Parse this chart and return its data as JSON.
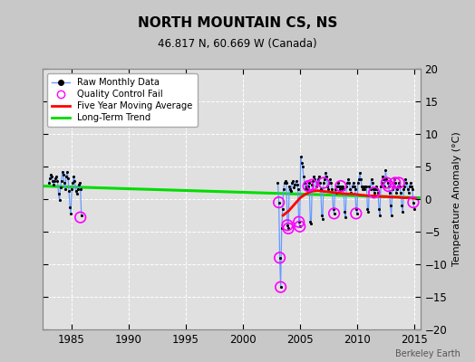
{
  "title": "NORTH MOUNTAIN CS, NS",
  "subtitle": "46.817 N, 60.669 W (Canada)",
  "ylabel": "Temperature Anomaly (°C)",
  "watermark": "Berkeley Earth",
  "xlim": [
    1982.5,
    2015.5
  ],
  "ylim": [
    -20,
    20
  ],
  "yticks": [
    -20,
    -15,
    -10,
    -5,
    0,
    5,
    10,
    15,
    20
  ],
  "xticks": [
    1985,
    1990,
    1995,
    2000,
    2005,
    2010,
    2015
  ],
  "bg_color": "#c8c8c8",
  "plot_bg_color": "#e0e0e0",
  "raw_color": "#6699ff",
  "raw_marker_color": "#000000",
  "qc_color": "#ff00ff",
  "moving_avg_color": "#ff0000",
  "trend_color": "#00dd00",
  "segment1": {
    "x": [
      1983.04,
      1983.13,
      1983.21,
      1983.29,
      1983.38,
      1983.46,
      1983.54,
      1983.63,
      1983.71,
      1983.79,
      1983.88,
      1983.96,
      1984.04,
      1984.13,
      1984.21,
      1984.29,
      1984.38,
      1984.46,
      1984.54,
      1984.63,
      1984.71,
      1984.79,
      1984.88,
      1984.96,
      1985.04,
      1985.13,
      1985.21,
      1985.29,
      1985.38,
      1985.46,
      1985.54,
      1985.63,
      1985.71,
      1985.79,
      1985.88
    ],
    "y": [
      2.5,
      3.2,
      3.8,
      3.5,
      2.8,
      2.2,
      2.8,
      3.2,
      3.5,
      2.8,
      0.8,
      -0.2,
      1.8,
      2.8,
      4.2,
      3.8,
      2.5,
      1.5,
      3.5,
      4.2,
      3.2,
      1.2,
      -1.2,
      -2.2,
      1.5,
      2.5,
      3.5,
      2.8,
      1.2,
      0.8,
      1.5,
      2.2,
      2.5,
      1.5,
      -2.5
    ]
  },
  "qc_seg1": {
    "x": [
      1985.79
    ],
    "y": [
      -2.8
    ]
  },
  "segment2": {
    "x": [
      2003.04,
      2003.13,
      2003.21,
      2003.29,
      2003.38,
      2003.46,
      2003.54,
      2003.63,
      2003.71,
      2003.79,
      2003.88,
      2003.96,
      2004.04,
      2004.13,
      2004.21,
      2004.29,
      2004.38,
      2004.46,
      2004.54,
      2004.63,
      2004.71,
      2004.79,
      2004.88,
      2004.96,
      2005.04,
      2005.13,
      2005.21,
      2005.29,
      2005.38,
      2005.46,
      2005.54,
      2005.63,
      2005.71,
      2005.79,
      2005.88,
      2005.96,
      2006.04,
      2006.13,
      2006.21,
      2006.29,
      2006.38,
      2006.46,
      2006.54,
      2006.63,
      2006.71,
      2006.79,
      2006.88,
      2006.96,
      2007.04,
      2007.13,
      2007.21,
      2007.29,
      2007.38,
      2007.46,
      2007.54,
      2007.63,
      2007.71,
      2007.79,
      2007.88,
      2007.96,
      2008.04,
      2008.13,
      2008.21,
      2008.29,
      2008.38,
      2008.46,
      2008.54,
      2008.63,
      2008.71,
      2008.79,
      2008.88,
      2008.96,
      2009.04,
      2009.13,
      2009.21,
      2009.29,
      2009.38,
      2009.46,
      2009.54,
      2009.63,
      2009.71,
      2009.79,
      2009.88,
      2009.96,
      2010.04,
      2010.13,
      2010.21,
      2010.29,
      2010.38,
      2010.46,
      2010.54,
      2010.63,
      2010.71,
      2010.79,
      2010.88,
      2010.96,
      2011.04,
      2011.13,
      2011.21,
      2011.29,
      2011.38,
      2011.46,
      2011.54,
      2011.63,
      2011.71,
      2011.79,
      2011.88,
      2011.96,
      2012.04,
      2012.13,
      2012.21,
      2012.29,
      2012.38,
      2012.46,
      2012.54,
      2012.63,
      2012.71,
      2012.79,
      2012.88,
      2012.96,
      2013.04,
      2013.13,
      2013.21,
      2013.29,
      2013.38,
      2013.46,
      2013.54,
      2013.63,
      2013.71,
      2013.79,
      2013.88,
      2013.96,
      2014.04,
      2014.13,
      2014.21,
      2014.29,
      2014.38,
      2014.46,
      2014.54,
      2014.63,
      2014.71,
      2014.79,
      2014.88,
      2014.96
    ],
    "y": [
      2.5,
      -0.5,
      -9.0,
      -13.5,
      -4.5,
      -1.5,
      1.5,
      2.5,
      2.8,
      2.5,
      -4.0,
      -4.5,
      2.0,
      1.5,
      1.2,
      2.5,
      2.8,
      1.8,
      2.2,
      2.8,
      2.2,
      1.5,
      -3.5,
      -4.2,
      6.5,
      5.5,
      5.0,
      3.5,
      2.5,
      1.5,
      2.0,
      1.5,
      2.0,
      2.5,
      -3.5,
      -3.8,
      2.2,
      2.8,
      3.5,
      3.0,
      2.0,
      2.5,
      3.0,
      3.5,
      2.5,
      1.5,
      -2.5,
      -3.0,
      2.5,
      3.0,
      4.0,
      3.5,
      2.0,
      1.5,
      2.5,
      3.0,
      2.5,
      1.5,
      -1.5,
      -2.2,
      1.5,
      1.0,
      2.0,
      2.5,
      2.0,
      1.5,
      2.0,
      1.5,
      2.0,
      1.5,
      -2.0,
      -2.8,
      2.0,
      2.5,
      3.0,
      2.5,
      1.5,
      1.0,
      2.0,
      2.5,
      2.0,
      1.5,
      -1.5,
      -2.2,
      2.5,
      3.0,
      4.0,
      3.0,
      2.0,
      1.5,
      2.0,
      1.5,
      2.0,
      2.0,
      -1.5,
      -2.0,
      2.0,
      1.5,
      3.0,
      2.5,
      1.5,
      1.0,
      1.5,
      2.0,
      1.5,
      1.0,
      -1.5,
      -2.5,
      2.0,
      2.5,
      3.5,
      3.0,
      2.0,
      4.5,
      3.0,
      2.5,
      2.0,
      1.0,
      -1.0,
      -2.5,
      1.5,
      2.0,
      3.0,
      2.5,
      1.0,
      1.5,
      2.0,
      2.5,
      2.0,
      1.0,
      -1.0,
      -2.0,
      1.5,
      2.0,
      3.0,
      2.5,
      1.5,
      1.0,
      2.0,
      2.5,
      2.0,
      1.5,
      -0.5,
      -1.5
    ]
  },
  "qc_seg2": {
    "x": [
      2003.13,
      2003.21,
      2003.29,
      2003.88,
      2003.96,
      2004.88,
      2004.96,
      2005.71,
      2006.04,
      2007.04,
      2007.96,
      2008.54,
      2009.88,
      2011.46,
      2012.54,
      2012.71,
      2013.29,
      2013.63,
      2014.88
    ],
    "y": [
      -0.5,
      -9.0,
      -13.5,
      -4.0,
      -4.5,
      -3.5,
      -4.2,
      2.0,
      2.2,
      2.5,
      -2.2,
      2.0,
      -2.2,
      1.0,
      2.5,
      2.0,
      2.5,
      2.5,
      -0.5
    ]
  },
  "moving_avg": {
    "x": [
      2003.5,
      2004.0,
      2004.5,
      2005.0,
      2005.5,
      2006.0,
      2006.5,
      2007.0,
      2007.5,
      2008.0,
      2008.5,
      2009.0,
      2009.5,
      2010.0,
      2010.5,
      2011.0,
      2011.5,
      2012.0,
      2012.5,
      2013.0,
      2013.5,
      2014.0,
      2014.5,
      2015.0
    ],
    "y": [
      -2.5,
      -1.8,
      -0.8,
      0.2,
      0.8,
      1.2,
      1.3,
      1.2,
      1.1,
      1.0,
      0.9,
      0.8,
      0.8,
      0.7,
      0.6,
      0.5,
      0.5,
      0.4,
      0.4,
      0.3,
      0.3,
      0.2,
      0.2,
      0.1
    ]
  },
  "trend": {
    "x": [
      1982.5,
      2015.5
    ],
    "y": [
      2.0,
      0.2
    ]
  }
}
